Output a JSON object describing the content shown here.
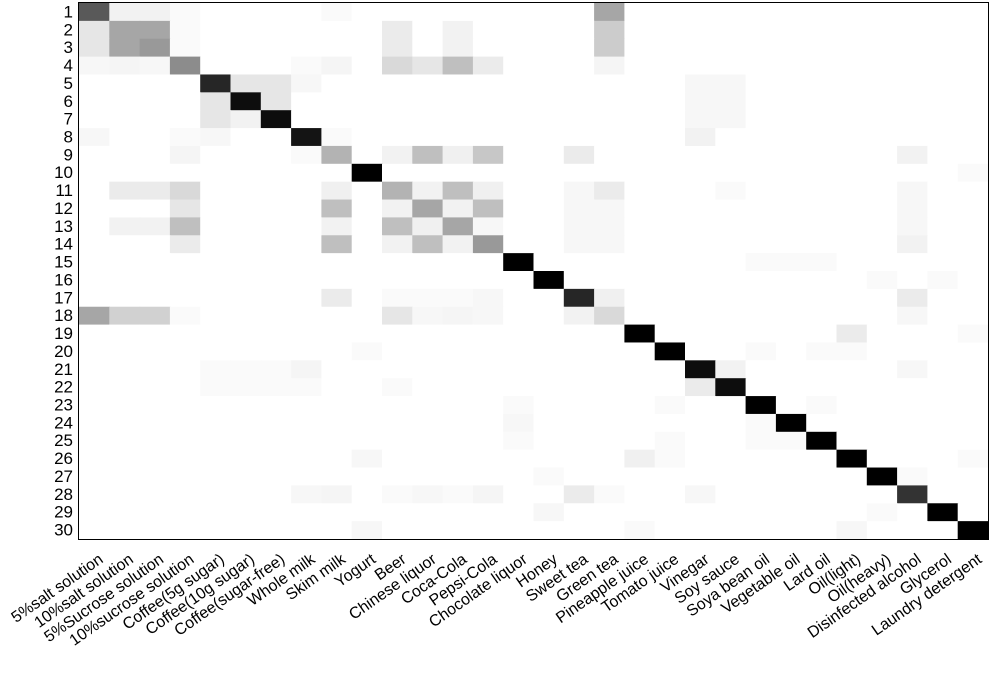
{
  "chart_data": {
    "type": "heatmap",
    "title": "",
    "xlabel": "",
    "ylabel": "",
    "grid": false,
    "legend": "none",
    "colormap": "gray-reversed (white = 0, black = 1)",
    "row_labels": [
      "1",
      "2",
      "3",
      "4",
      "5",
      "6",
      "7",
      "8",
      "9",
      "10",
      "11",
      "12",
      "13",
      "14",
      "15",
      "16",
      "17",
      "18",
      "19",
      "20",
      "21",
      "22",
      "23",
      "24",
      "25",
      "26",
      "27",
      "28",
      "29",
      "30"
    ],
    "col_labels": [
      "5%salt solution",
      "10%salt solution",
      "5%Sucrose solution",
      "10%sucrose solution",
      "Coffee(5g sugar)",
      "Coffee(10g sugar)",
      "Coffee(sugar-free)",
      "Whole milk",
      "Skim milk",
      "Yogurt",
      "Beer",
      "Chinese liquor",
      "Coca-Cola",
      "Pepsi-Cola",
      "Chocolate liquor",
      "Honey",
      "Sweet tea",
      "Green tea",
      "Pineapple juice",
      "Tomato juice",
      "Vinegar",
      "Soy sauce",
      "Soya bean oil",
      "Vegetable oil",
      "Lard oil",
      "Oil(light)",
      "Oil(heavy)",
      "Disinfected alcohol",
      "Glycerol",
      "Laundry detergent"
    ],
    "values": [
      [
        0.65,
        0.05,
        0.05,
        0.02,
        0,
        0,
        0,
        0,
        0.02,
        0,
        0,
        0,
        0,
        0,
        0,
        0,
        0,
        0.35,
        0,
        0,
        0,
        0,
        0,
        0,
        0,
        0,
        0,
        0,
        0,
        0
      ],
      [
        0.1,
        0.35,
        0.35,
        0.02,
        0,
        0,
        0,
        0,
        0,
        0,
        0.08,
        0,
        0.05,
        0,
        0,
        0,
        0,
        0.2,
        0,
        0,
        0,
        0,
        0,
        0,
        0,
        0,
        0,
        0,
        0,
        0
      ],
      [
        0.1,
        0.35,
        0.4,
        0.02,
        0,
        0,
        0,
        0,
        0,
        0,
        0.08,
        0,
        0.05,
        0,
        0,
        0,
        0,
        0.2,
        0,
        0,
        0,
        0,
        0,
        0,
        0,
        0,
        0,
        0,
        0,
        0
      ],
      [
        0.03,
        0.04,
        0.03,
        0.45,
        0,
        0,
        0,
        0.02,
        0.04,
        0,
        0.15,
        0.1,
        0.25,
        0.08,
        0,
        0,
        0,
        0.04,
        0,
        0,
        0,
        0,
        0,
        0,
        0,
        0,
        0,
        0,
        0,
        0
      ],
      [
        0,
        0,
        0,
        0,
        0.85,
        0.1,
        0.1,
        0.03,
        0,
        0,
        0,
        0,
        0,
        0,
        0,
        0,
        0,
        0,
        0,
        0,
        0.03,
        0.03,
        0,
        0,
        0,
        0,
        0,
        0,
        0,
        0
      ],
      [
        0,
        0,
        0,
        0,
        0.1,
        0.95,
        0.1,
        0,
        0,
        0,
        0,
        0,
        0,
        0,
        0,
        0,
        0,
        0,
        0,
        0,
        0.03,
        0.03,
        0,
        0,
        0,
        0,
        0,
        0,
        0,
        0
      ],
      [
        0,
        0,
        0,
        0,
        0.1,
        0.05,
        0.95,
        0,
        0,
        0,
        0,
        0,
        0,
        0,
        0,
        0,
        0,
        0,
        0,
        0,
        0.03,
        0.03,
        0,
        0,
        0,
        0,
        0,
        0,
        0,
        0
      ],
      [
        0.03,
        0,
        0,
        0.02,
        0.03,
        0,
        0,
        0.92,
        0.02,
        0,
        0,
        0,
        0,
        0,
        0,
        0,
        0,
        0,
        0,
        0,
        0.05,
        0,
        0,
        0,
        0,
        0,
        0,
        0,
        0,
        0
      ],
      [
        0,
        0,
        0,
        0.04,
        0,
        0,
        0,
        0.02,
        0.3,
        0,
        0.05,
        0.25,
        0.06,
        0.22,
        0,
        0,
        0.08,
        0,
        0,
        0,
        0,
        0,
        0,
        0,
        0,
        0,
        0,
        0.05,
        0,
        0
      ],
      [
        0,
        0,
        0,
        0,
        0,
        0,
        0,
        0,
        0,
        1,
        0,
        0,
        0,
        0,
        0,
        0,
        0,
        0,
        0,
        0,
        0,
        0,
        0,
        0,
        0,
        0,
        0,
        0,
        0,
        0.02
      ],
      [
        0,
        0.08,
        0.08,
        0.15,
        0,
        0,
        0,
        0,
        0.06,
        0,
        0.3,
        0.05,
        0.25,
        0.06,
        0,
        0,
        0.03,
        0.08,
        0,
        0,
        0,
        0.02,
        0,
        0,
        0,
        0,
        0,
        0.03,
        0,
        0
      ],
      [
        0,
        0,
        0,
        0.1,
        0,
        0,
        0,
        0,
        0.25,
        0,
        0.05,
        0.35,
        0.05,
        0.25,
        0,
        0,
        0.03,
        0.03,
        0,
        0,
        0,
        0,
        0,
        0,
        0,
        0,
        0,
        0.03,
        0,
        0
      ],
      [
        0,
        0.05,
        0.05,
        0.25,
        0,
        0,
        0,
        0,
        0.05,
        0,
        0.25,
        0.06,
        0.35,
        0.03,
        0,
        0,
        0.03,
        0.03,
        0,
        0,
        0,
        0,
        0,
        0,
        0,
        0,
        0,
        0.03,
        0,
        0
      ],
      [
        0,
        0,
        0,
        0.08,
        0,
        0,
        0,
        0,
        0.25,
        0,
        0.05,
        0.25,
        0.05,
        0.4,
        0,
        0,
        0.03,
        0.03,
        0,
        0,
        0,
        0,
        0,
        0,
        0,
        0,
        0,
        0.05,
        0,
        0
      ],
      [
        0,
        0,
        0,
        0,
        0,
        0,
        0,
        0,
        0,
        0,
        0,
        0,
        0,
        0,
        1,
        0,
        0,
        0,
        0,
        0,
        0,
        0,
        0.02,
        0.02,
        0.02,
        0,
        0,
        0,
        0,
        0
      ],
      [
        0,
        0,
        0,
        0,
        0,
        0,
        0,
        0,
        0,
        0,
        0,
        0,
        0,
        0,
        0,
        1,
        0,
        0,
        0,
        0,
        0,
        0,
        0,
        0,
        0,
        0,
        0.02,
        0,
        0.02,
        0
      ],
      [
        0,
        0,
        0,
        0,
        0,
        0,
        0,
        0,
        0.08,
        0,
        0.02,
        0.02,
        0.02,
        0.03,
        0,
        0,
        0.85,
        0.06,
        0,
        0,
        0,
        0,
        0,
        0,
        0,
        0,
        0,
        0.08,
        0,
        0
      ],
      [
        0.35,
        0.18,
        0.18,
        0.02,
        0,
        0,
        0,
        0,
        0,
        0,
        0.1,
        0.03,
        0.04,
        0.03,
        0,
        0,
        0.05,
        0.15,
        0,
        0,
        0,
        0,
        0,
        0,
        0,
        0,
        0,
        0.03,
        0,
        0
      ],
      [
        0,
        0,
        0,
        0,
        0,
        0,
        0,
        0,
        0,
        0,
        0,
        0,
        0,
        0,
        0,
        0,
        0,
        0,
        1,
        0,
        0,
        0,
        0,
        0,
        0,
        0.08,
        0,
        0,
        0,
        0.02
      ],
      [
        0,
        0,
        0,
        0,
        0,
        0,
        0,
        0,
        0,
        0.02,
        0,
        0,
        0,
        0,
        0,
        0,
        0,
        0,
        0,
        1,
        0,
        0,
        0.02,
        0,
        0.02,
        0.02,
        0,
        0,
        0,
        0
      ],
      [
        0,
        0,
        0,
        0,
        0.02,
        0.02,
        0.02,
        0.04,
        0,
        0,
        0,
        0,
        0,
        0,
        0,
        0,
        0,
        0,
        0,
        0,
        0.95,
        0.05,
        0,
        0,
        0,
        0,
        0,
        0.03,
        0,
        0
      ],
      [
        0,
        0,
        0,
        0,
        0.02,
        0.02,
        0.02,
        0.02,
        0,
        0,
        0.02,
        0,
        0,
        0,
        0,
        0,
        0,
        0,
        0,
        0,
        0.08,
        0.95,
        0,
        0,
        0,
        0,
        0,
        0,
        0,
        0
      ],
      [
        0,
        0,
        0,
        0,
        0,
        0,
        0,
        0,
        0,
        0,
        0,
        0,
        0,
        0,
        0.02,
        0,
        0,
        0,
        0,
        0.02,
        0,
        0,
        1,
        0,
        0.02,
        0,
        0,
        0,
        0,
        0
      ],
      [
        0,
        0,
        0,
        0,
        0,
        0,
        0,
        0,
        0,
        0,
        0,
        0,
        0,
        0,
        0.03,
        0,
        0,
        0,
        0,
        0,
        0,
        0,
        0.02,
        1,
        0,
        0,
        0,
        0,
        0,
        0
      ],
      [
        0,
        0,
        0,
        0,
        0,
        0,
        0,
        0,
        0,
        0,
        0,
        0,
        0,
        0,
        0.02,
        0,
        0,
        0,
        0,
        0.02,
        0,
        0,
        0.02,
        0.02,
        1,
        0,
        0,
        0,
        0,
        0
      ],
      [
        0,
        0,
        0,
        0,
        0,
        0,
        0,
        0,
        0,
        0.03,
        0,
        0,
        0,
        0,
        0,
        0,
        0,
        0,
        0.06,
        0.02,
        0,
        0,
        0,
        0,
        0,
        1,
        0,
        0,
        0,
        0.02
      ],
      [
        0,
        0,
        0,
        0,
        0,
        0,
        0,
        0,
        0,
        0,
        0,
        0,
        0,
        0,
        0,
        0.02,
        0,
        0,
        0,
        0,
        0,
        0,
        0,
        0,
        0,
        0,
        1,
        0.02,
        0,
        0
      ],
      [
        0,
        0,
        0,
        0,
        0,
        0,
        0,
        0.03,
        0.04,
        0,
        0.02,
        0.03,
        0.02,
        0.04,
        0,
        0,
        0.08,
        0.02,
        0,
        0,
        0.03,
        0,
        0,
        0,
        0,
        0,
        0,
        0.8,
        0,
        0
      ],
      [
        0,
        0,
        0,
        0,
        0,
        0,
        0,
        0,
        0,
        0,
        0,
        0,
        0,
        0,
        0,
        0.03,
        0,
        0,
        0,
        0,
        0,
        0,
        0,
        0,
        0,
        0,
        0.02,
        0,
        1,
        0
      ],
      [
        0,
        0,
        0,
        0,
        0,
        0,
        0,
        0,
        0,
        0.03,
        0,
        0,
        0,
        0,
        0,
        0,
        0,
        0,
        0.02,
        0,
        0,
        0,
        0,
        0,
        0,
        0.03,
        0,
        0,
        0,
        1
      ]
    ]
  }
}
